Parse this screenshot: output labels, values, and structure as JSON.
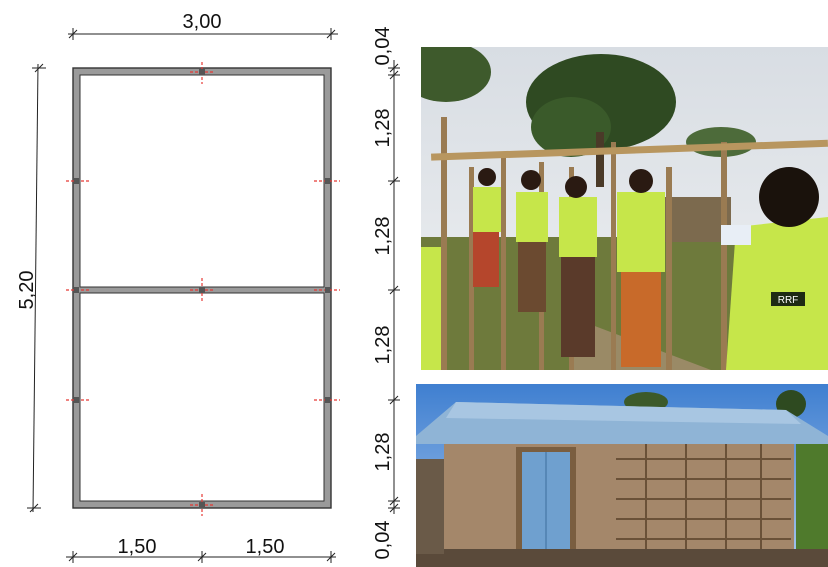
{
  "plan": {
    "width_total": "3,00",
    "length_total": "5,20",
    "bottom_left": "1,50",
    "bottom_right": "1,50",
    "right_dims": [
      "0,04",
      "1,28",
      "1,28",
      "1,28",
      "1,28",
      "0,04"
    ]
  },
  "photos": {
    "top": {
      "subject": "workers-building-timber-frame"
    },
    "bottom": {
      "subject": "finished-mud-wall-shelter"
    },
    "vest_text": "RRF"
  }
}
